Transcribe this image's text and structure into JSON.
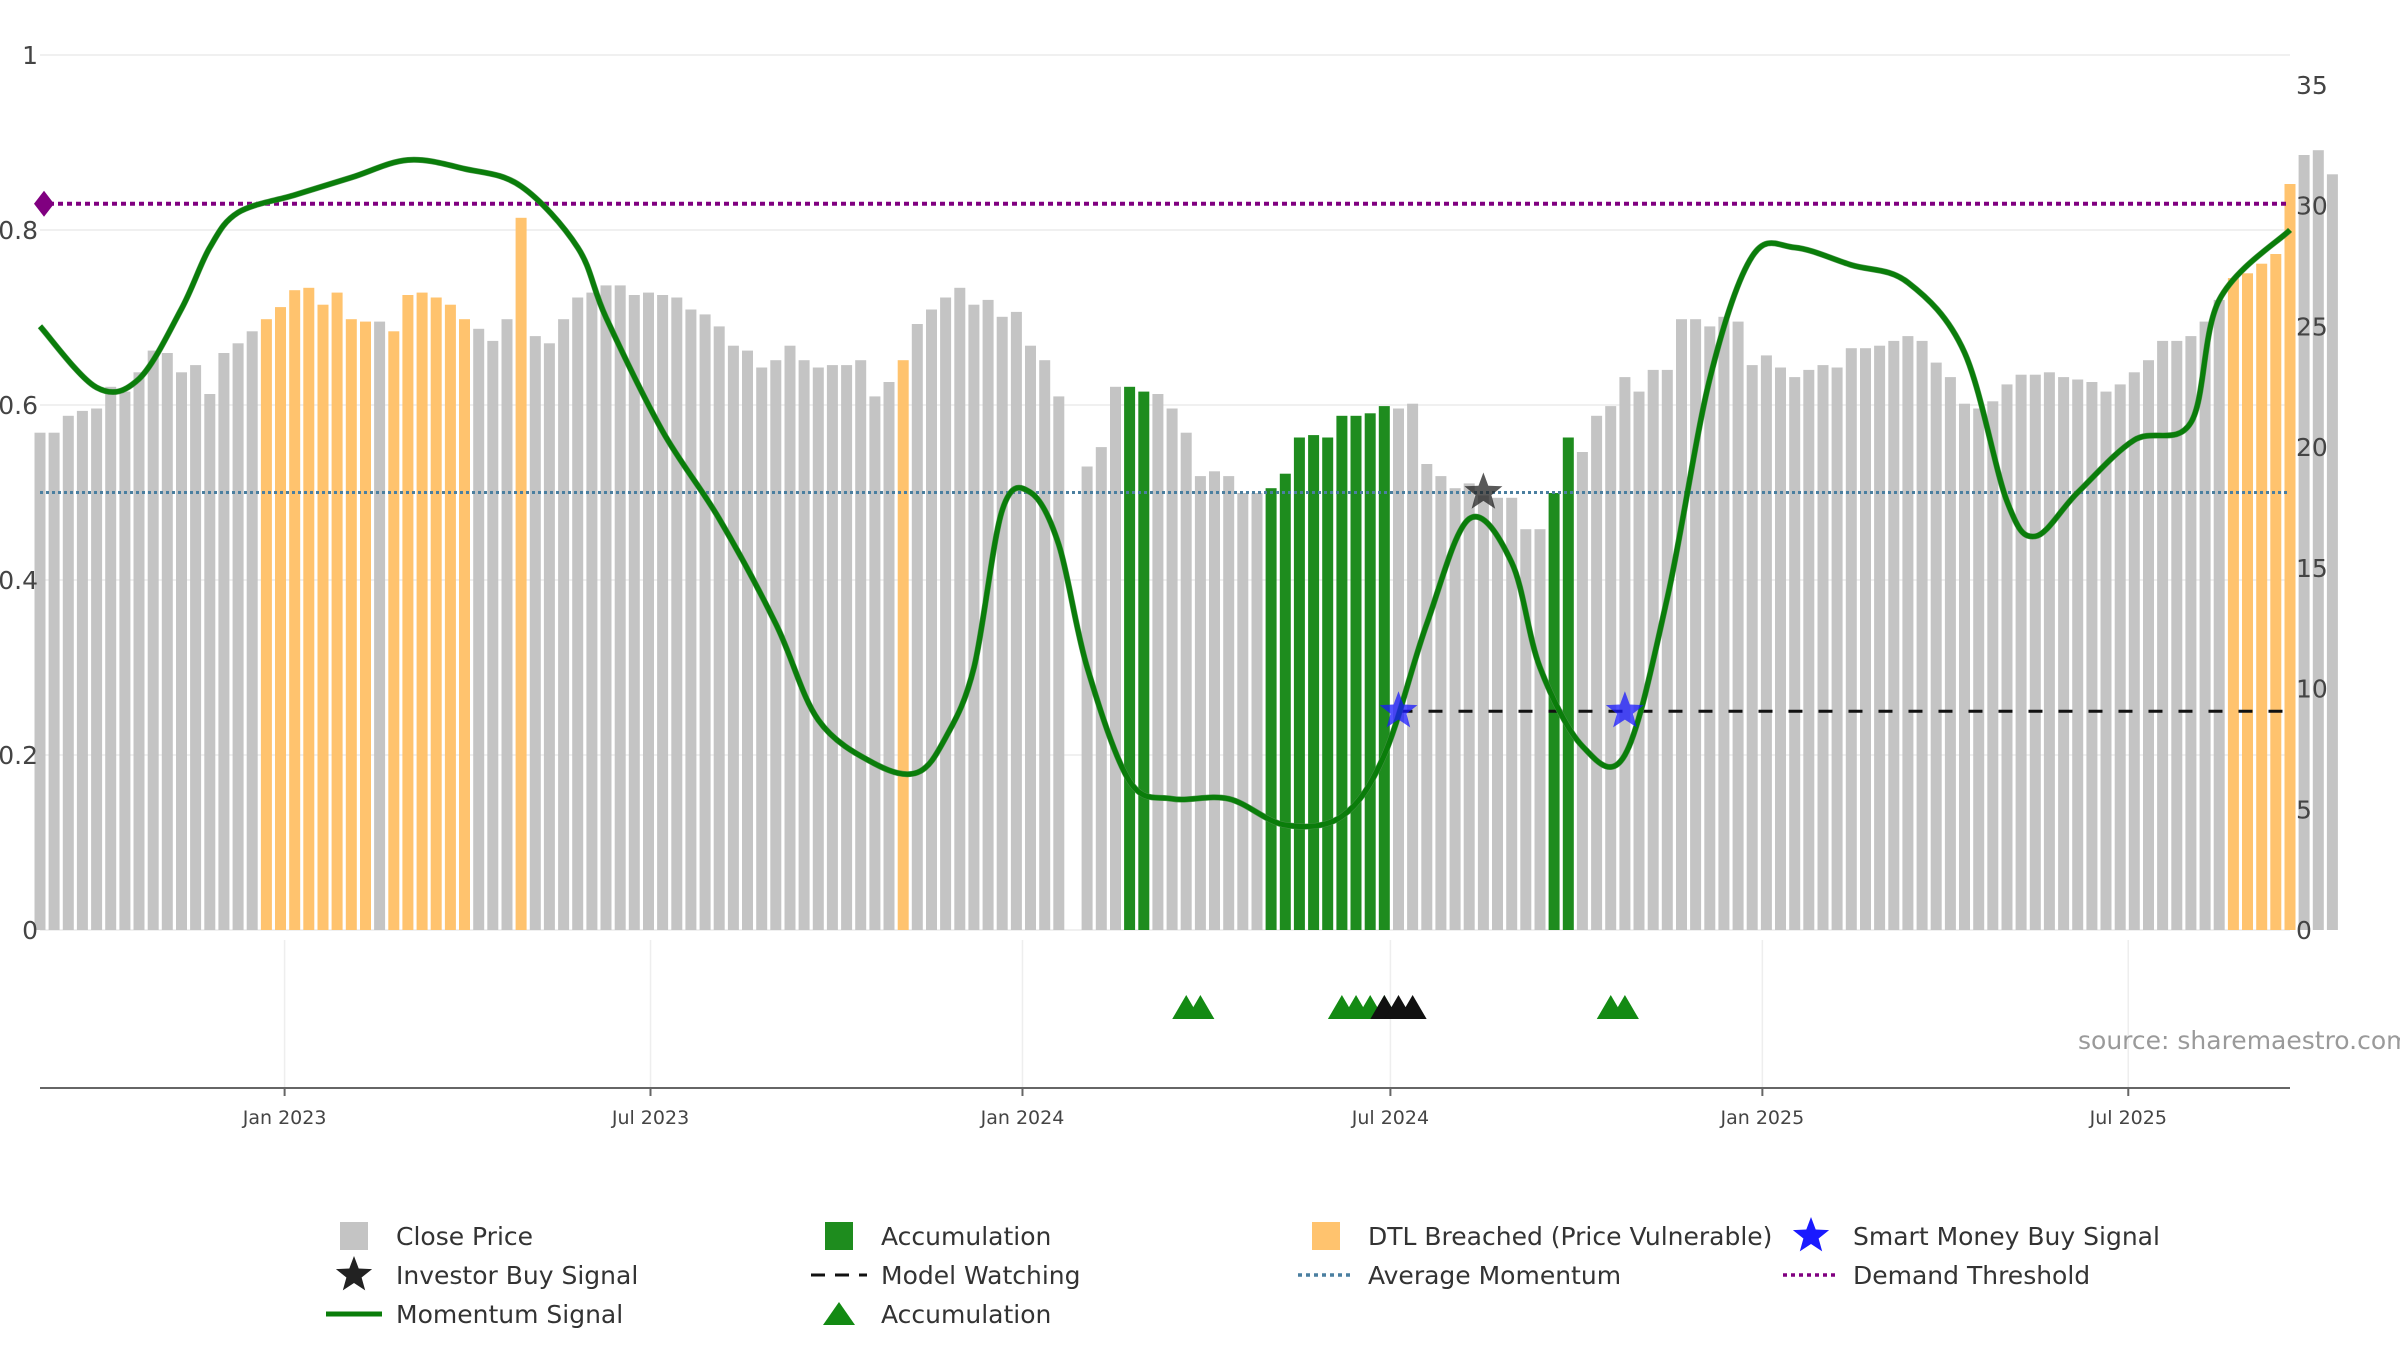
{
  "chart_data": {
    "type": "bar",
    "title": "",
    "x_range": [
      "2022-09-02",
      "2025-09-19"
    ],
    "x_ticks": [
      "Jan 2023",
      "Jul 2023",
      "Jan 2024",
      "Jul 2024",
      "Jan 2025",
      "Jul 2025"
    ],
    "x_tick_dates": [
      "2023-01-01",
      "2023-07-01",
      "2024-01-01",
      "2024-07-01",
      "2025-01-01",
      "2025-07-01"
    ],
    "y_left": {
      "ticks": [
        "0",
        "0.2",
        "0.4",
        "0.6",
        "0.8",
        "1"
      ],
      "range": [
        0,
        1
      ]
    },
    "y_right": {
      "ticks": [
        "0",
        "5",
        "10",
        "15",
        "20",
        "25",
        "30",
        "35"
      ],
      "range": [
        0,
        35
      ]
    },
    "grid": true,
    "colors": {
      "close_price": "#c4c4c4",
      "accumulation": "#1e8c1e",
      "dtl_breached": "#ffc36e",
      "momentum_strong": "#0a7d0a",
      "momentum_weak": "#4a8f4a",
      "average_momentum": "#4a7fa0",
      "demand_threshold": "#800080",
      "smart_money": "#1a1aff",
      "investor_buy": "#222222"
    },
    "price_series_weekly": {
      "name": "Close Price",
      "start_date": "2022-09-02",
      "interval": "week",
      "unit": "right axis",
      "values": [
        20.6,
        20.6,
        21.3,
        21.5,
        21.6,
        22.5,
        22.3,
        23.1,
        24.0,
        23.9,
        23.1,
        23.4,
        22.2,
        23.9,
        24.3,
        24.8,
        25.3,
        25.8,
        26.5,
        26.6,
        25.9,
        26.4,
        25.3,
        25.2,
        25.2,
        24.8,
        26.3,
        26.4,
        26.2,
        25.9,
        25.3,
        24.9,
        24.4,
        25.3,
        29.5,
        24.6,
        24.3,
        25.3,
        26.2,
        26.4,
        26.7,
        26.7,
        26.3,
        26.4,
        26.3,
        26.2,
        25.7,
        25.5,
        25.0,
        24.2,
        24.0,
        23.3,
        23.6,
        24.2,
        23.6,
        23.3,
        23.4,
        23.4,
        23.6,
        22.1,
        22.7,
        23.6,
        25.1,
        25.7,
        26.2,
        26.6,
        25.9,
        26.1,
        25.4,
        25.6,
        24.2,
        23.6,
        22.1,
        20.7,
        19.2,
        20.0,
        22.5,
        22.5,
        22.3,
        22.2,
        21.6,
        20.6,
        18.8,
        19.0,
        18.8,
        18.1,
        18.1,
        18.3,
        18.9,
        20.4,
        20.5,
        20.4,
        21.3,
        21.3,
        21.4,
        21.7,
        21.6,
        21.8,
        19.3,
        18.8,
        18.3,
        18.5,
        18.0,
        17.9,
        17.9,
        16.6,
        16.6,
        18.1,
        20.4,
        19.8,
        21.3,
        21.7,
        22.9,
        22.3,
        23.2,
        23.2,
        25.3,
        25.3,
        25.0,
        25.4,
        25.2,
        23.4,
        23.8,
        23.3,
        22.9,
        23.2,
        23.4,
        23.3,
        24.1,
        24.1,
        24.2,
        24.4,
        24.6,
        24.4,
        23.5,
        22.9,
        21.8,
        21.6,
        21.9,
        22.6,
        23.0,
        23.0,
        23.1,
        22.9,
        22.8,
        22.7,
        22.3,
        22.6,
        23.1,
        23.6,
        24.4,
        24.4,
        24.6,
        25.2,
        26.1,
        27.0,
        27.2,
        27.6,
        28.0,
        30.9,
        32.1,
        32.3,
        31.3
      ]
    },
    "accumulation_weeks": [
      77,
      78,
      87,
      88,
      89,
      90,
      91,
      92,
      93,
      94,
      95,
      107,
      108
    ],
    "dtl_breached_weeks": [
      16,
      17,
      18,
      19,
      20,
      21,
      22,
      23,
      25,
      26,
      27,
      28,
      29,
      30,
      34,
      61,
      155,
      156,
      157,
      158,
      159
    ],
    "price_gaps": [
      73
    ],
    "momentum_signal": {
      "name": "Momentum Signal",
      "unit": "left axis",
      "points": [
        [
          "2022-09-02",
          0.69
        ],
        [
          "2022-09-30",
          0.62
        ],
        [
          "2022-10-21",
          0.63
        ],
        [
          "2022-11-11",
          0.71
        ],
        [
          "2022-11-25",
          0.78
        ],
        [
          "2022-12-09",
          0.82
        ],
        [
          "2023-01-06",
          0.84
        ],
        [
          "2023-02-03",
          0.86
        ],
        [
          "2023-03-03",
          0.88
        ],
        [
          "2023-03-31",
          0.87
        ],
        [
          "2023-04-28",
          0.85
        ],
        [
          "2023-05-26",
          0.78
        ],
        [
          "2023-06-09",
          0.7
        ],
        [
          "2023-07-07",
          0.57
        ],
        [
          "2023-08-04",
          0.47
        ],
        [
          "2023-09-01",
          0.35
        ],
        [
          "2023-09-22",
          0.24
        ],
        [
          "2023-10-20",
          0.19
        ],
        [
          "2023-11-10",
          0.18
        ],
        [
          "2023-11-24",
          0.22
        ],
        [
          "2023-12-08",
          0.3
        ],
        [
          "2023-12-22",
          0.48
        ],
        [
          "2024-01-05",
          0.5
        ],
        [
          "2024-01-19",
          0.44
        ],
        [
          "2024-02-02",
          0.3
        ],
        [
          "2024-02-23",
          0.17
        ],
        [
          "2024-03-15",
          0.15
        ],
        [
          "2024-04-12",
          0.15
        ],
        [
          "2024-05-10",
          0.12
        ],
        [
          "2024-06-07",
          0.13
        ],
        [
          "2024-06-28",
          0.2
        ],
        [
          "2024-07-19",
          0.35
        ],
        [
          "2024-08-09",
          0.47
        ],
        [
          "2024-08-30",
          0.42
        ],
        [
          "2024-09-13",
          0.3
        ],
        [
          "2024-10-04",
          0.21
        ],
        [
          "2024-10-25",
          0.2
        ],
        [
          "2024-11-15",
          0.38
        ],
        [
          "2024-12-06",
          0.63
        ],
        [
          "2024-12-27",
          0.77
        ],
        [
          "2025-01-17",
          0.78
        ],
        [
          "2025-02-14",
          0.76
        ],
        [
          "2025-03-14",
          0.74
        ],
        [
          "2025-04-11",
          0.66
        ],
        [
          "2025-05-02",
          0.49
        ],
        [
          "2025-05-16",
          0.45
        ],
        [
          "2025-06-06",
          0.5
        ],
        [
          "2025-07-04",
          0.56
        ],
        [
          "2025-08-01",
          0.58
        ],
        [
          "2025-08-15",
          0.72
        ],
        [
          "2025-09-19",
          0.8
        ]
      ]
    },
    "average_momentum": {
      "name": "Average Momentum",
      "value": 0.5
    },
    "demand_threshold": {
      "name": "Demand Threshold",
      "value": 0.83
    },
    "model_watching": {
      "name": "Model Watching",
      "value": 0.25,
      "from": "2024-07-05",
      "to": "2025-09-19"
    },
    "smart_money_buy_signals": [
      [
        "2024-07-05",
        0.25
      ],
      [
        "2024-10-25",
        0.25
      ]
    ],
    "investor_buy_signals": [
      [
        "2024-08-16",
        0.5
      ]
    ],
    "accumulation_markers": {
      "green": [
        "2024-03-22",
        "2024-03-29",
        "2024-06-07",
        "2024-06-14",
        "2024-06-21",
        "2024-06-28",
        "2024-10-18",
        "2024-10-25"
      ],
      "black": [
        "2024-06-28",
        "2024-07-05",
        "2024-07-12"
      ]
    },
    "source": "source: sharemaestro.com",
    "legend": [
      "Close Price",
      "Accumulation",
      "DTL Breached (Price Vulnerable)",
      "Smart Money Buy Signal",
      "Investor Buy Signal",
      "Model Watching",
      "Average Momentum",
      "Demand Threshold",
      "Momentum Signal",
      "Accumulation"
    ]
  }
}
